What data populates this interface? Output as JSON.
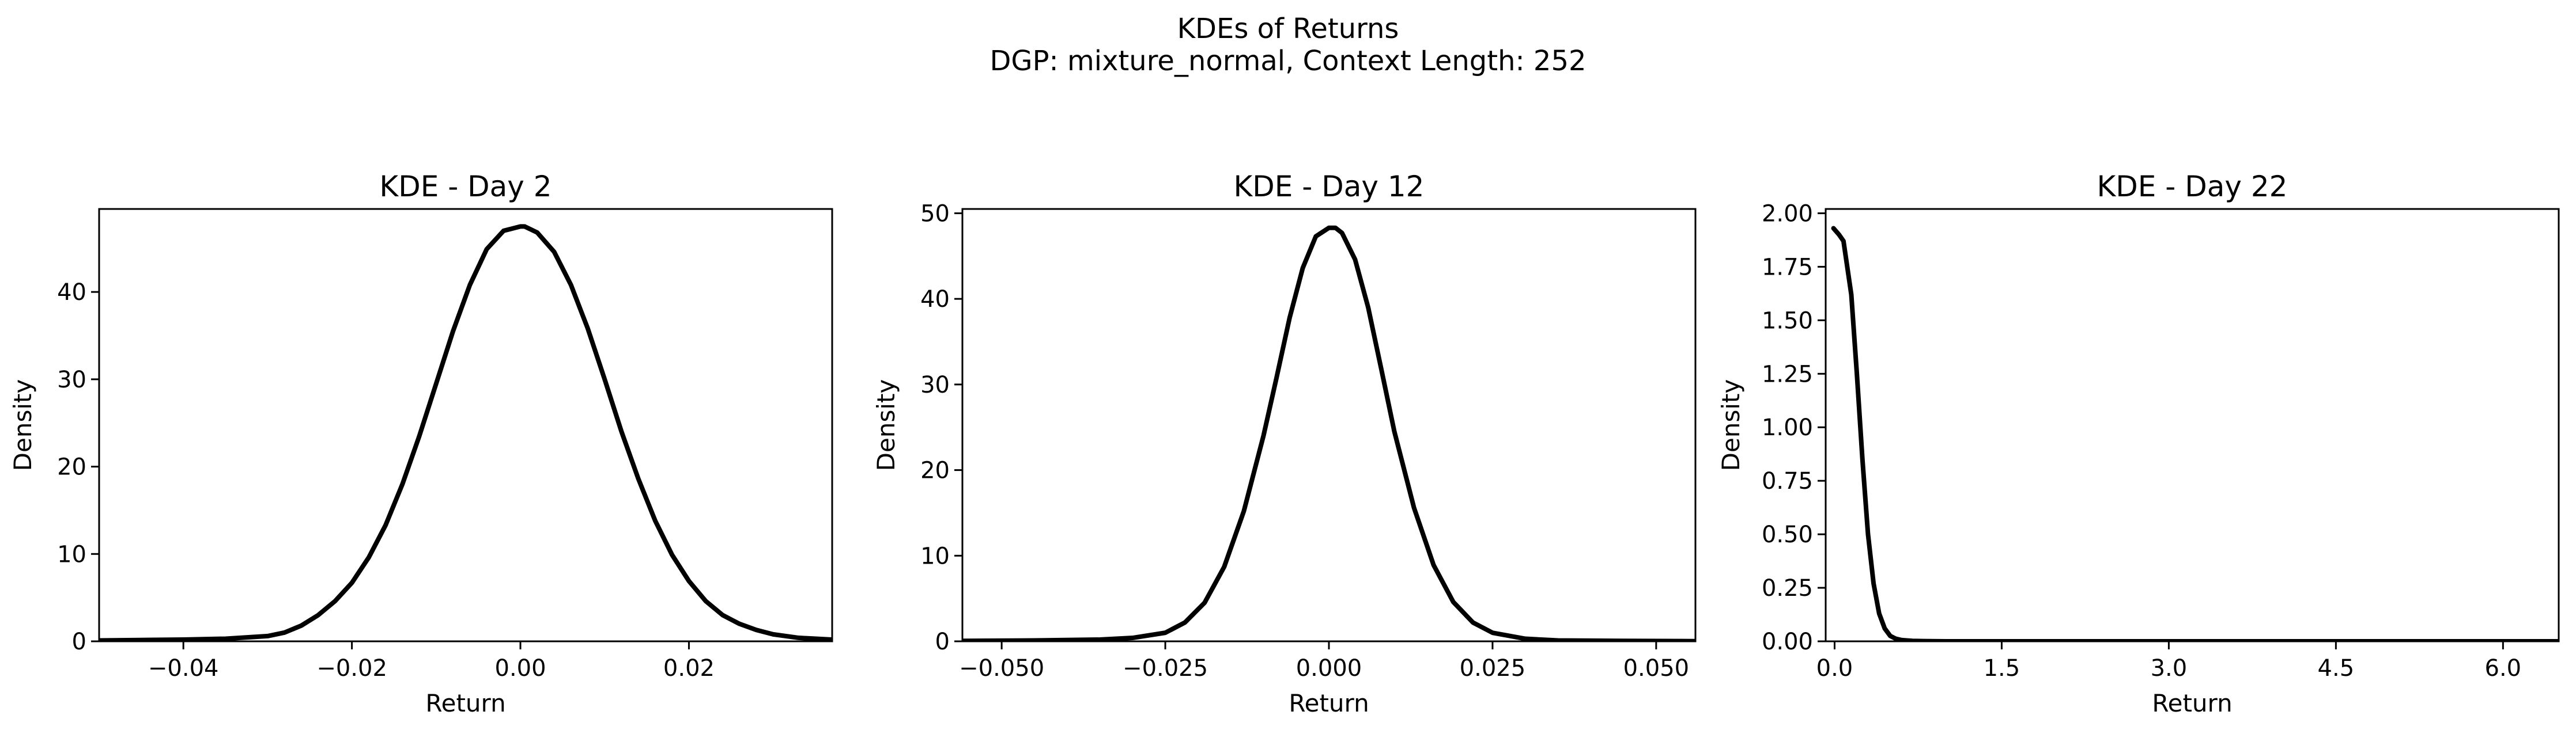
{
  "suptitle": {
    "line1": "KDEs of Returns",
    "line2": "DGP: mixture_normal, Context Length: 252"
  },
  "chart_data": [
    {
      "type": "line",
      "title": "KDE - Day 2",
      "xlabel": "Return",
      "ylabel": "Density",
      "xlim": [
        -0.05,
        0.037
      ],
      "ylim": [
        0,
        49.5
      ],
      "xticks": [
        -0.04,
        -0.02,
        0.0,
        0.02
      ],
      "xtick_labels": [
        "−0.04",
        "−0.02",
        "0.00",
        "0.02"
      ],
      "yticks": [
        0,
        10,
        20,
        30,
        40
      ],
      "ytick_labels": [
        "0",
        "10",
        "20",
        "30",
        "40"
      ],
      "grid": false,
      "color": "#000000",
      "series": [
        {
          "x": [
            -0.05,
            -0.045,
            -0.04,
            -0.035,
            -0.03,
            -0.028,
            -0.026,
            -0.024,
            -0.022,
            -0.02,
            -0.018,
            -0.016,
            -0.014,
            -0.012,
            -0.01,
            -0.008,
            -0.006,
            -0.004,
            -0.002,
            0.0,
            0.0005,
            0.002,
            0.004,
            0.006,
            0.008,
            0.01,
            0.012,
            0.014,
            0.016,
            0.018,
            0.02,
            0.022,
            0.024,
            0.026,
            0.028,
            0.03,
            0.033,
            0.037
          ],
          "y": [
            0.1,
            0.15,
            0.2,
            0.3,
            0.6,
            1.0,
            1.8,
            3.0,
            4.6,
            6.7,
            9.6,
            13.3,
            18.0,
            23.5,
            29.5,
            35.5,
            40.8,
            44.9,
            47.0,
            47.5,
            47.5,
            46.8,
            44.6,
            40.8,
            35.8,
            30.0,
            24.0,
            18.6,
            13.8,
            9.9,
            6.9,
            4.6,
            3.0,
            2.0,
            1.3,
            0.8,
            0.4,
            0.2
          ]
        }
      ]
    },
    {
      "type": "line",
      "title": "KDE - Day 12",
      "xlabel": "Return",
      "ylabel": "Density",
      "xlim": [
        -0.056,
        0.056
      ],
      "ylim": [
        0,
        50.5
      ],
      "xticks": [
        -0.05,
        -0.025,
        0.0,
        0.025,
        0.05
      ],
      "xtick_labels": [
        "−0.050",
        "−0.025",
        "0.000",
        "0.025",
        "0.050"
      ],
      "yticks": [
        0,
        10,
        20,
        30,
        40,
        50
      ],
      "ytick_labels": [
        "0",
        "10",
        "20",
        "30",
        "40",
        "50"
      ],
      "grid": false,
      "color": "#000000",
      "series": [
        {
          "x": [
            -0.056,
            -0.045,
            -0.035,
            -0.03,
            -0.025,
            -0.022,
            -0.019,
            -0.016,
            -0.013,
            -0.01,
            -0.008,
            -0.006,
            -0.004,
            -0.002,
            0.0,
            0.001,
            0.002,
            0.004,
            0.006,
            0.008,
            0.01,
            0.013,
            0.016,
            0.019,
            0.022,
            0.025,
            0.03,
            0.035,
            0.045,
            0.056
          ],
          "y": [
            0.05,
            0.1,
            0.2,
            0.4,
            1.0,
            2.2,
            4.5,
            8.7,
            15.2,
            24.0,
            30.8,
            37.8,
            43.6,
            47.3,
            48.3,
            48.3,
            47.7,
            44.6,
            39.0,
            31.8,
            24.5,
            15.6,
            8.9,
            4.6,
            2.2,
            1.0,
            0.3,
            0.1,
            0.05,
            0.02
          ]
        }
      ]
    },
    {
      "type": "line",
      "title": "KDE - Day 22",
      "xlabel": "Return",
      "ylabel": "Density",
      "xlim": [
        -0.08,
        6.5
      ],
      "ylim": [
        0,
        2.02
      ],
      "xticks": [
        0.0,
        1.5,
        3.0,
        4.5,
        6.0
      ],
      "xtick_labels": [
        "0.0",
        "1.5",
        "3.0",
        "4.5",
        "6.0"
      ],
      "yticks": [
        0.0,
        0.25,
        0.5,
        0.75,
        1.0,
        1.25,
        1.5,
        1.75,
        2.0
      ],
      "ytick_labels": [
        "0.00",
        "0.25",
        "0.50",
        "0.75",
        "1.00",
        "1.25",
        "1.50",
        "1.75",
        "2.00"
      ],
      "grid": false,
      "color": "#000000",
      "series": [
        {
          "x": [
            -0.01,
            0.04,
            0.08,
            0.15,
            0.2,
            0.25,
            0.3,
            0.35,
            0.4,
            0.45,
            0.5,
            0.55,
            0.6,
            0.7,
            0.8,
            1.0,
            1.5,
            3.0,
            4.5,
            6.0,
            6.5
          ],
          "y": [
            1.93,
            1.9,
            1.87,
            1.62,
            1.25,
            0.85,
            0.5,
            0.27,
            0.13,
            0.06,
            0.025,
            0.012,
            0.006,
            0.002,
            0.001,
            0.0,
            0.0,
            0.0,
            0.0,
            0.0,
            0.0
          ]
        }
      ]
    }
  ]
}
